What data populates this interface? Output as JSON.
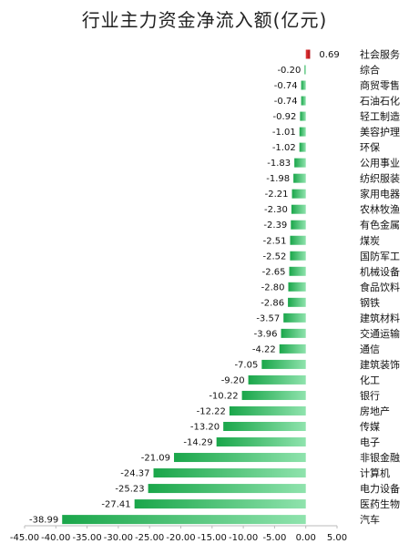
{
  "chart_data": {
    "type": "bar",
    "orientation": "horizontal",
    "title": "行业主力资金净流入额(亿元)",
    "categories": [
      "社会服务",
      "综合",
      "商贸零售",
      "石油石化",
      "轻工制造",
      "美容护理",
      "环保",
      "公用事业",
      "纺织服装",
      "家用电器",
      "农林牧渔",
      "有色金属",
      "煤炭",
      "国防军工",
      "机械设备",
      "食品饮料",
      "钢铁",
      "建筑材料",
      "交通运输",
      "通信",
      "建筑装饰",
      "化工",
      "银行",
      "房地产",
      "传媒",
      "电子",
      "非银金融",
      "计算机",
      "电力设备",
      "医药生物",
      "汽车"
    ],
    "values": [
      0.69,
      -0.2,
      -0.74,
      -0.74,
      -0.92,
      -1.01,
      -1.02,
      -1.83,
      -1.98,
      -2.21,
      -2.3,
      -2.39,
      -2.51,
      -2.52,
      -2.65,
      -2.8,
      -2.86,
      -3.57,
      -3.96,
      -4.22,
      -7.05,
      -9.2,
      -10.22,
      -12.22,
      -13.2,
      -14.29,
      -21.09,
      -24.37,
      -25.23,
      -27.41,
      -38.99
    ],
    "value_labels": [
      "0.69",
      "-0.20",
      "-0.74",
      "-0.74",
      "-0.92",
      "-1.01",
      "-1.02",
      "-1.83",
      "-1.98",
      "-2.21",
      "-2.30",
      "-2.39",
      "-2.51",
      "-2.52",
      "-2.65",
      "-2.80",
      "-2.86",
      "-3.57",
      "-3.96",
      "-4.22",
      "-7.05",
      "-9.20",
      "-10.22",
      "-12.22",
      "-13.20",
      "-14.29",
      "-21.09",
      "-24.37",
      "-25.23",
      "-27.41",
      "-38.99"
    ],
    "xlim": [
      -45,
      5
    ],
    "xticks": [
      "-45.00",
      "-40.00",
      "-35.00",
      "-30.00",
      "-25.00",
      "-20.00",
      "-15.00",
      "-10.00",
      "-5.00",
      "0.00",
      "5.00"
    ],
    "grid": false,
    "legend": "none",
    "colors": {
      "positive": "#c0141c",
      "negative": "#1fae4e",
      "negative_light": "#8fe3ad"
    }
  }
}
